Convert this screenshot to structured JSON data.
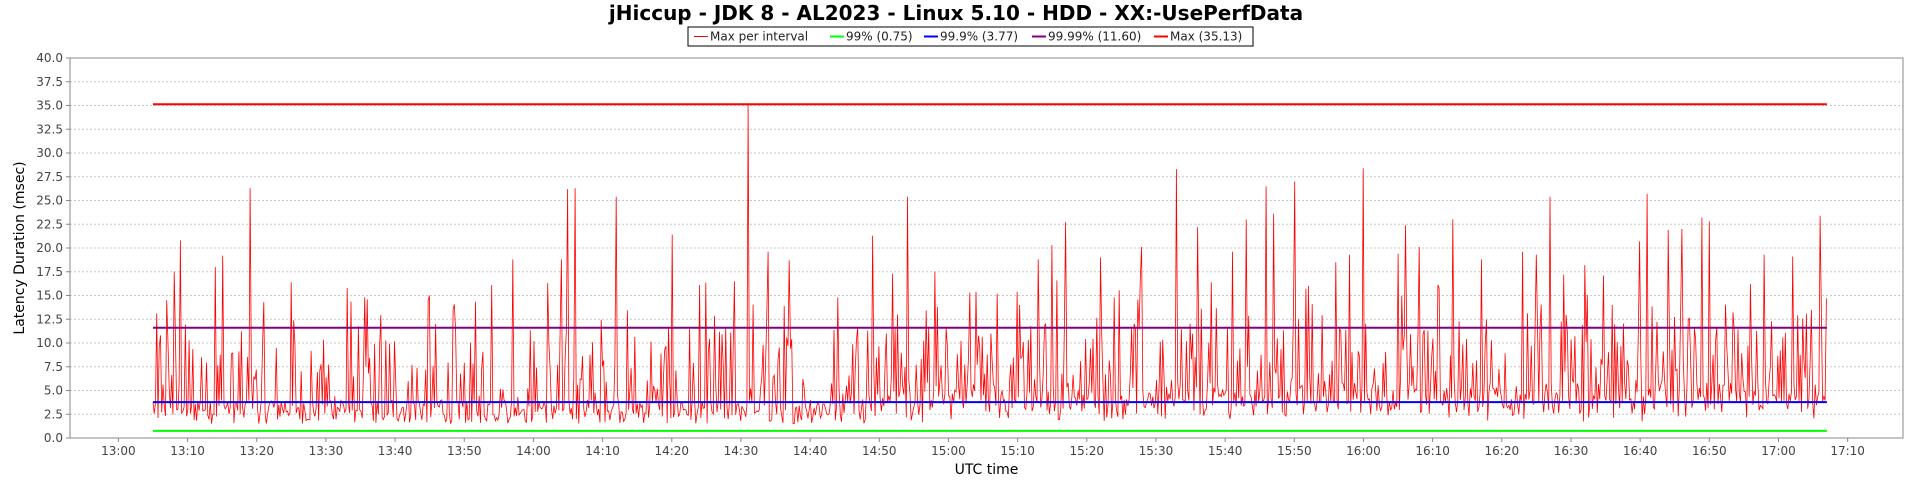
{
  "chart_data": {
    "type": "line",
    "title": "jHiccup - JDK 8 - AL2023 - Linux 5.10 - HDD - XX:-UsePerfData",
    "xlabel": "UTC time",
    "ylabel": "Latency Duration (msec)",
    "ylim": [
      0,
      40
    ],
    "xlim": [
      "12:53",
      "17:18"
    ],
    "yticks": [
      "0.0",
      "2.5",
      "5.0",
      "7.5",
      "10.0",
      "12.5",
      "15.0",
      "17.5",
      "20.0",
      "22.5",
      "25.0",
      "27.5",
      "30.0",
      "32.5",
      "35.0",
      "37.5",
      "40.0"
    ],
    "xticks": [
      "13:00",
      "13:10",
      "13:20",
      "13:30",
      "13:40",
      "13:50",
      "14:00",
      "14:10",
      "14:20",
      "14:30",
      "14:40",
      "14:50",
      "15:00",
      "15:10",
      "15:20",
      "15:30",
      "15:40",
      "15:50",
      "16:00",
      "16:10",
      "16:20",
      "16:30",
      "16:40",
      "16:50",
      "17:00",
      "17:10"
    ],
    "grid": true,
    "legend_position": "top-center",
    "series": [
      {
        "name": "Max per interval",
        "color": "#ff0000",
        "x_start": "13:05",
        "x_end": "17:07",
        "baseline": 1.5,
        "peaks": [
          [
            "13:06",
            10.8
          ],
          [
            "13:07",
            14.5
          ],
          [
            "13:08",
            17.5
          ],
          [
            "13:09",
            20.8
          ],
          [
            "13:12",
            8.5
          ],
          [
            "13:14",
            18.0
          ],
          [
            "13:15",
            19.2
          ],
          [
            "13:19",
            26.3
          ],
          [
            "13:21",
            14.3
          ],
          [
            "13:25",
            16.4
          ],
          [
            "13:33",
            15.8
          ],
          [
            "13:36",
            14.6
          ],
          [
            "13:45",
            15.0
          ],
          [
            "13:54",
            16.1
          ],
          [
            "13:57",
            18.8
          ],
          [
            "14:02",
            16.3
          ],
          [
            "14:04",
            18.8
          ],
          [
            "14:05",
            26.2
          ],
          [
            "14:06",
            26.3
          ],
          [
            "14:12",
            25.4
          ],
          [
            "14:20",
            21.4
          ],
          [
            "14:24",
            16.1
          ],
          [
            "14:29",
            16.5
          ],
          [
            "14:31",
            35.1
          ],
          [
            "14:34",
            19.6
          ],
          [
            "14:37",
            18.7
          ],
          [
            "14:44",
            14.8
          ],
          [
            "14:49",
            21.3
          ],
          [
            "14:52",
            17.3
          ],
          [
            "14:54",
            25.4
          ],
          [
            "14:58",
            17.5
          ],
          [
            "15:03",
            15.3
          ],
          [
            "15:04",
            15.4
          ],
          [
            "15:07",
            15.2
          ],
          [
            "15:10",
            15.4
          ],
          [
            "15:13",
            18.8
          ],
          [
            "15:15",
            20.3
          ],
          [
            "15:17",
            22.7
          ],
          [
            "15:22",
            19.0
          ],
          [
            "15:24",
            14.8
          ],
          [
            "15:28",
            20.1
          ],
          [
            "15:33",
            28.3
          ],
          [
            "15:36",
            22.2
          ],
          [
            "15:38",
            16.4
          ],
          [
            "15:41",
            19.6
          ],
          [
            "15:43",
            23.0
          ],
          [
            "15:46",
            26.5
          ],
          [
            "15:47",
            23.6
          ],
          [
            "15:50",
            27.0
          ],
          [
            "15:52",
            16.0
          ],
          [
            "15:56",
            18.5
          ],
          [
            "15:58",
            19.3
          ],
          [
            "16:00",
            28.4
          ],
          [
            "16:05",
            19.4
          ],
          [
            "16:06",
            22.4
          ],
          [
            "16:08",
            20.1
          ],
          [
            "16:11",
            15.8
          ],
          [
            "16:13",
            23.0
          ],
          [
            "16:17",
            18.8
          ],
          [
            "16:23",
            19.6
          ],
          [
            "16:25",
            19.3
          ],
          [
            "16:27",
            25.4
          ],
          [
            "16:29",
            17.2
          ],
          [
            "16:32",
            18.2
          ],
          [
            "16:36",
            14.0
          ],
          [
            "16:40",
            20.7
          ],
          [
            "16:41",
            25.7
          ],
          [
            "16:44",
            21.9
          ],
          [
            "16:46",
            22.0
          ],
          [
            "16:49",
            23.2
          ],
          [
            "16:50",
            22.8
          ],
          [
            "16:56",
            16.2
          ],
          [
            "16:58",
            19.3
          ],
          [
            "17:02",
            19.1
          ],
          [
            "17:06",
            23.4
          ],
          [
            "17:07",
            14.7
          ]
        ]
      },
      {
        "name": "99% (0.75)",
        "color": "#00ff00",
        "value": 0.75,
        "x_start": "13:05",
        "x_end": "17:07"
      },
      {
        "name": "99.9% (3.77)",
        "color": "#0000ff",
        "value": 3.77,
        "x_start": "13:05",
        "x_end": "17:07"
      },
      {
        "name": "99.99% (11.60)",
        "color": "#800080",
        "value": 11.6,
        "x_start": "13:05",
        "x_end": "17:07"
      },
      {
        "name": "Max (35.13)",
        "color": "#ff0000",
        "value": 35.13,
        "x_start": "13:05",
        "x_end": "17:07"
      }
    ]
  }
}
